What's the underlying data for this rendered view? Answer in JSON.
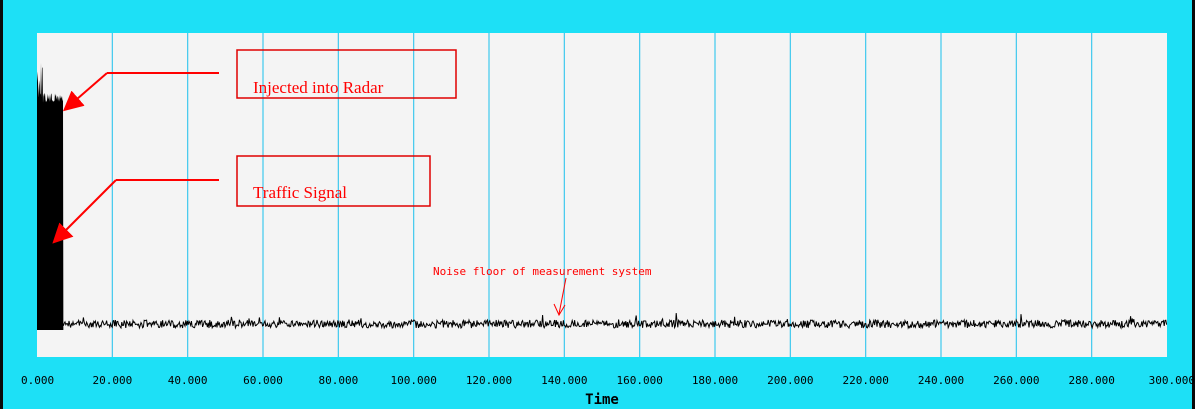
{
  "chart_data": {
    "type": "line",
    "xlabel": "Time",
    "ylabel": "",
    "xlim": [
      0,
      300
    ],
    "x_ticks": [
      "0.000",
      "20.000",
      "40.000",
      "60.000",
      "80.000",
      "100.000",
      "120.000",
      "140.000",
      "160.000",
      "180.000",
      "200.000",
      "220.000",
      "240.000",
      "260.000",
      "280.000",
      "300.000"
    ],
    "grid": "vertical",
    "colors": {
      "frame": "#1de0f6",
      "plot_bg": "#f4f4f4",
      "grid": "#3ec8ee",
      "trace": "#000000",
      "annotation": "#ff0000"
    },
    "series": [
      {
        "segments": [
          {
            "x_start": 0.0,
            "x_end": 1.5,
            "level": "peak"
          },
          {
            "x_start": 1.5,
            "x_end": 7.0,
            "level": "high"
          },
          {
            "x_start": 7.0,
            "x_end": 300.0,
            "level": "noise floor"
          }
        ]
      }
    ],
    "annotations": [
      {
        "text": "Injected into Radar",
        "boxed": true,
        "points_to_x": 5.5
      },
      {
        "text": "Traffic Signal",
        "boxed": true,
        "points_to_x": 5.0
      },
      {
        "text": "Noise floor of measurement system",
        "boxed": false,
        "points_to_x": 137.5
      }
    ]
  }
}
